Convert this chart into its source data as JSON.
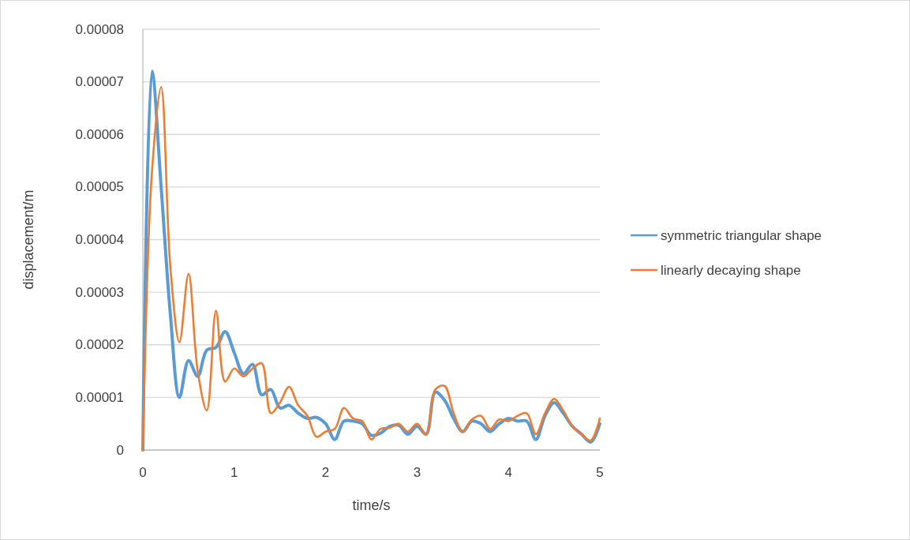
{
  "chart_data": {
    "type": "line",
    "xlabel": "time/s",
    "ylabel": "displacement/m",
    "x": [
      0,
      0.1,
      0.2,
      0.3,
      0.4,
      0.5,
      0.6,
      0.7,
      0.8,
      0.9,
      1,
      1.1,
      1.2,
      1.3,
      1.4,
      1.5,
      1.6,
      1.7,
      1.8,
      1.9,
      2,
      2.1,
      2.2,
      2.3,
      2.4,
      2.5,
      2.6,
      2.7,
      2.8,
      2.9,
      3,
      3.1,
      3.2,
      3.3,
      3.4,
      3.5,
      3.6,
      3.7,
      3.8,
      3.9,
      4,
      4.1,
      4.2,
      4.3,
      4.4,
      4.5,
      4.6,
      4.7,
      4.8,
      4.9,
      5
    ],
    "series": [
      {
        "name": "symmetric triangular shape",
        "color": "#5b9bd5",
        "values": [
          0,
          7.2e-05,
          5e-05,
          2.6e-05,
          1e-05,
          1.7e-05,
          1.4e-05,
          1.9e-05,
          1.95e-05,
          2.25e-05,
          1.85e-05,
          1.45e-05,
          1.63e-05,
          1.05e-05,
          1.15e-05,
          8e-06,
          8.5e-06,
          7e-06,
          6e-06,
          6.2e-06,
          5e-06,
          2e-06,
          5.5e-06,
          5.5e-06,
          5e-06,
          2.8e-06,
          3.2e-06,
          4.5e-06,
          4.7e-06,
          3e-06,
          4.5e-06,
          3e-06,
          1.1e-05,
          9.5e-06,
          6e-06,
          3.5e-06,
          5.5e-06,
          5e-06,
          3.5e-06,
          5e-06,
          6e-06,
          5.5e-06,
          5.5e-06,
          2e-06,
          6.5e-06,
          9e-06,
          7e-06,
          4.5e-06,
          3e-06,
          1.5e-06,
          5e-06
        ]
      },
      {
        "name": "linearly decaying shape",
        "color": "#ed7d31",
        "values": [
          0,
          5.3e-05,
          6.9e-05,
          3.5e-05,
          2.05e-05,
          3.35e-05,
          1.5e-05,
          7.5e-06,
          2.65e-05,
          1.3e-05,
          1.55e-05,
          1.4e-05,
          1.55e-05,
          1.65e-05,
          7e-06,
          9e-06,
          1.2e-05,
          8.5e-06,
          6.5e-06,
          2.5e-06,
          3.5e-06,
          4e-06,
          8e-06,
          6e-06,
          5.5e-06,
          2e-06,
          4e-06,
          4.2e-06,
          5e-06,
          3.5e-06,
          5e-06,
          3e-06,
          1.15e-05,
          1.22e-05,
          7e-06,
          3.5e-06,
          5.8e-06,
          6.5e-06,
          4e-06,
          5.8e-06,
          5.5e-06,
          6.5e-06,
          7e-06,
          3e-06,
          7e-06,
          9.7e-06,
          7.5e-06,
          4.5e-06,
          3e-06,
          1.8e-06,
          6e-06
        ]
      }
    ],
    "xlim": [
      0,
      5
    ],
    "xticks": [
      0,
      1,
      2,
      3,
      4,
      5
    ],
    "ylim": [
      0,
      8e-05
    ],
    "yticks": [
      0,
      {
        "value": 1e-05,
        "label": "0.00001"
      },
      {
        "value": 2e-05,
        "label": "0.00002"
      },
      {
        "value": 3e-05,
        "label": "0.00003"
      },
      {
        "value": 4e-05,
        "label": "0.00004"
      },
      {
        "value": 5e-05,
        "label": "0.00005"
      },
      {
        "value": 6e-05,
        "label": "0.00006"
      },
      {
        "value": 7e-05,
        "label": "0.00007"
      },
      {
        "value": 8e-05,
        "label": "0.00008"
      }
    ],
    "grid": "y",
    "legend": "right",
    "marker": "none",
    "line_style": "solid"
  }
}
